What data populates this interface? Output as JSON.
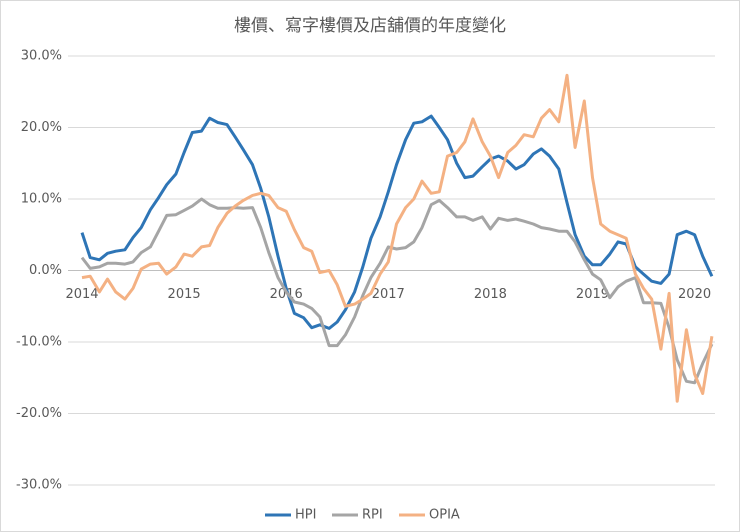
{
  "chart_data": {
    "type": "line",
    "title": "樓價、寫字樓價及店舖價的年度變化",
    "x": [
      2014.0,
      2014.08,
      2014.17,
      2014.25,
      2014.33,
      2014.42,
      2014.5,
      2014.58,
      2014.67,
      2014.75,
      2014.83,
      2014.92,
      2015.0,
      2015.08,
      2015.17,
      2015.25,
      2015.33,
      2015.42,
      2015.5,
      2015.58,
      2015.67,
      2015.75,
      2015.83,
      2015.92,
      2016.0,
      2016.08,
      2016.17,
      2016.25,
      2016.33,
      2016.42,
      2016.5,
      2016.58,
      2016.67,
      2016.75,
      2016.83,
      2016.92,
      2017.0,
      2017.08,
      2017.17,
      2017.25,
      2017.33,
      2017.42,
      2017.5,
      2017.58,
      2017.67,
      2017.75,
      2017.83,
      2017.92,
      2018.0,
      2018.08,
      2018.17,
      2018.25,
      2018.33,
      2018.42,
      2018.5,
      2018.58,
      2018.67,
      2018.75,
      2018.83,
      2018.92,
      2019.0,
      2019.08,
      2019.17,
      2019.25,
      2019.33,
      2019.42,
      2019.5,
      2019.58,
      2019.67,
      2019.75,
      2019.83,
      2019.92,
      2020.0,
      2020.08,
      2020.17
    ],
    "series": [
      {
        "name": "HPI",
        "color": "#2e75b6",
        "values": [
          5.3,
          1.8,
          1.5,
          2.4,
          2.7,
          2.9,
          4.6,
          6.0,
          8.5,
          10.2,
          12.0,
          13.5,
          16.5,
          19.3,
          19.5,
          21.3,
          20.7,
          20.4,
          18.7,
          16.9,
          14.8,
          11.5,
          7.5,
          2.0,
          -2.5,
          -6.0,
          -6.6,
          -8.0,
          -7.6,
          -8.1,
          -7.2,
          -5.5,
          -3.0,
          0.5,
          4.5,
          7.5,
          11.0,
          14.8,
          18.3,
          20.6,
          20.8,
          21.6,
          20.0,
          18.3,
          15.0,
          13.0,
          13.2,
          14.5,
          15.6,
          16.0,
          15.3,
          14.2,
          14.8,
          16.3,
          17.0,
          16.0,
          14.2,
          9.5,
          5.0,
          2.0,
          0.8,
          0.8,
          2.3,
          4.0,
          3.7,
          0.5,
          -0.5,
          -1.5,
          -1.8,
          -0.5,
          5.0,
          5.5,
          5.0,
          2.0,
          -0.8
        ]
      },
      {
        "name": "RPI",
        "color": "#a5a5a5",
        "values": [
          1.8,
          0.3,
          0.5,
          1.0,
          1.0,
          0.9,
          1.2,
          2.5,
          3.3,
          5.5,
          7.7,
          7.8,
          8.4,
          9.0,
          10.0,
          9.2,
          8.7,
          8.7,
          8.8,
          8.7,
          8.8,
          6.0,
          2.5,
          -1.0,
          -3.0,
          -4.4,
          -4.7,
          -5.3,
          -6.5,
          -10.5,
          -10.5,
          -9.0,
          -6.5,
          -3.5,
          -1.0,
          1.0,
          3.3,
          3.0,
          3.2,
          4.0,
          6.0,
          9.2,
          9.8,
          8.8,
          7.5,
          7.5,
          7.0,
          7.5,
          5.8,
          7.3,
          7.0,
          7.2,
          6.9,
          6.5,
          6.0,
          5.8,
          5.5,
          5.5,
          4.0,
          1.5,
          -0.5,
          -1.3,
          -3.8,
          -2.3,
          -1.5,
          -1.0,
          -4.5,
          -4.5,
          -4.6,
          -8.0,
          -12.5,
          -15.5,
          -15.7,
          -13.0,
          -10.3
        ]
      },
      {
        "name": "OPIA",
        "color": "#f4b183",
        "values": [
          -1.0,
          -0.8,
          -3.0,
          -1.2,
          -3.0,
          -4.0,
          -2.5,
          0.2,
          0.9,
          1.0,
          -0.5,
          0.5,
          2.3,
          2.0,
          3.3,
          3.5,
          6.0,
          8.0,
          9.0,
          9.8,
          10.5,
          10.8,
          10.5,
          8.8,
          8.3,
          5.7,
          3.2,
          2.7,
          -0.3,
          0.0,
          -2.0,
          -5.0,
          -4.7,
          -4.0,
          -3.2,
          -0.5,
          1.2,
          6.5,
          8.8,
          10.0,
          12.5,
          10.8,
          11.0,
          16.0,
          16.5,
          18.0,
          21.2,
          18.0,
          16.0,
          13.0,
          16.5,
          17.5,
          19.0,
          18.7,
          21.3,
          22.5,
          20.8,
          27.3,
          17.2,
          23.7,
          13.0,
          6.5,
          5.5,
          5.0,
          4.5,
          -0.5,
          -2.5,
          -4.0,
          -11.0,
          -3.2,
          -18.3,
          -8.3,
          -14.5,
          -17.2,
          -9.2
        ]
      }
    ],
    "xlim": [
      2014,
      2020.2
    ],
    "xticks": [
      2014,
      2015,
      2016,
      2017,
      2018,
      2019,
      2020
    ],
    "ylim": [
      -30,
      30
    ],
    "yticks": [
      {
        "value": 30,
        "label": "30.0%"
      },
      {
        "value": 20,
        "label": "20.0%"
      },
      {
        "value": 10,
        "label": "10.0%"
      },
      {
        "value": 0,
        "label": "0.0%"
      },
      {
        "value": -10,
        "label": "-10.0%"
      },
      {
        "value": -20,
        "label": "-20.0%"
      },
      {
        "value": -30,
        "label": "-30.0%"
      }
    ],
    "grid": true,
    "legend": "bottom"
  }
}
